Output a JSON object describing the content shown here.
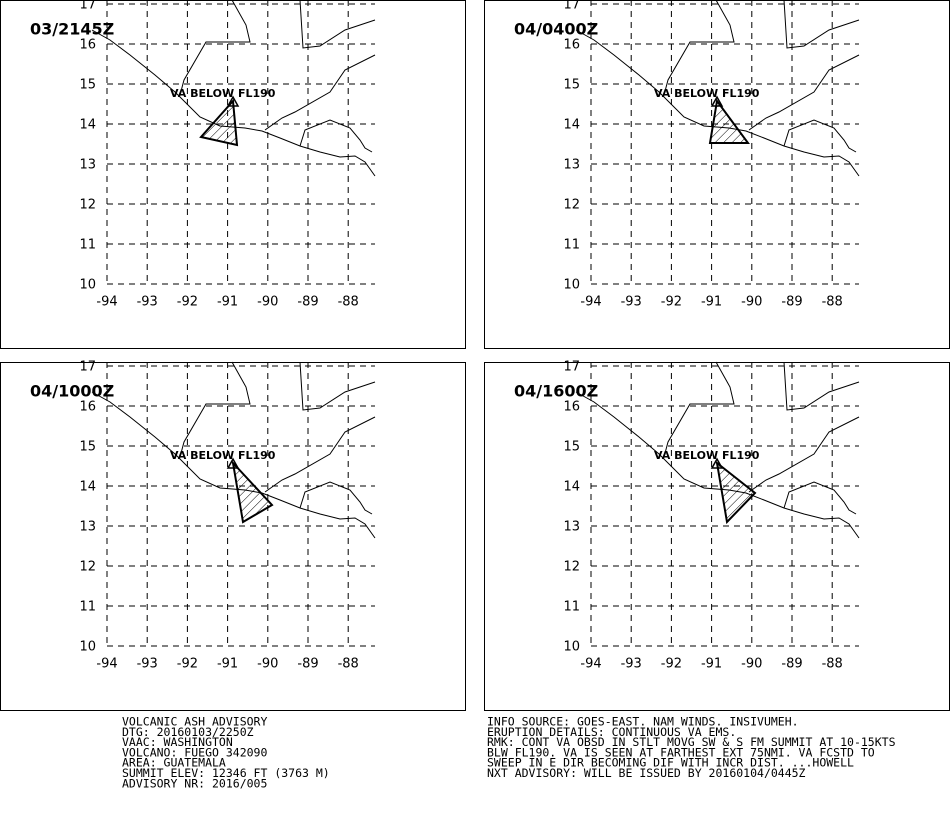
{
  "panels": [
    {
      "time": "03/2145Z",
      "annotation": "VA BELOW FL190",
      "lat_ticks": [
        17,
        16,
        15,
        14,
        13,
        12,
        11,
        10
      ],
      "lon_ticks": [
        -94,
        -93,
        -92,
        -91,
        -90,
        -89,
        -88
      ]
    },
    {
      "time": "04/0400Z",
      "annotation": "VA BELOW FL190",
      "lat_ticks": [
        17,
        16,
        15,
        14,
        13,
        12,
        11,
        10
      ],
      "lon_ticks": [
        -94,
        -93,
        -92,
        -91,
        -90,
        -89,
        -88
      ]
    },
    {
      "time": "04/1000Z",
      "annotation": "VA BELOW FL190",
      "lat_ticks": [
        17,
        16,
        15,
        14,
        13,
        12,
        11,
        10
      ],
      "lon_ticks": [
        -94,
        -93,
        -92,
        -91,
        -90,
        -89,
        -88
      ]
    },
    {
      "time": "04/1600Z",
      "annotation": "VA BELOW FL190",
      "lat_ticks": [
        17,
        16,
        15,
        14,
        13,
        12,
        11,
        10
      ],
      "lon_ticks": [
        -94,
        -93,
        -92,
        -91,
        -90,
        -89,
        -88
      ]
    }
  ],
  "advisory": {
    "lines": [
      "VOLCANIC ASH ADVISORY",
      "DTG: 20160103/2250Z",
      "VAAC: WASHINGTON",
      "VOLCANO: FUEGO 342090",
      "AREA: GUATEMALA",
      "SUMMIT ELEV: 12346 FT (3763 M)",
      "ADVISORY NR: 2016/005"
    ]
  },
  "info": {
    "lines": [
      "INFO SOURCE: GOES-EAST. NAM WINDS. INSIVUMEH.",
      "ERUPTION DETAILS: CONTINUOUS VA EMS.",
      "RMK: CONT VA OBSD IN STLT MOVG SW & S FM SUMMIT AT 10-15KTS",
      "BLW FL190. VA IS SEEN AT FARTHEST EXT 75NMI. VA FCSTD TO",
      "SWEEP IN E DIR BECOMING DIF WITH INCR DIST. ...HOWELL",
      "NXT ADVISORY: WILL BE ISSUED BY 20160104/0445Z"
    ]
  }
}
